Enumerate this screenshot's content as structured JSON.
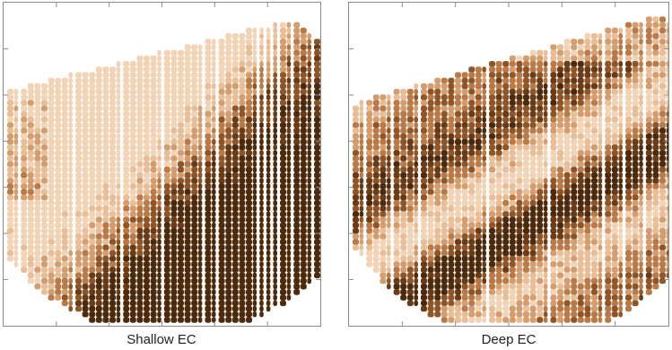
{
  "maps": [
    {
      "caption": "Shallow EC",
      "pattern": "broad diagonal band: light upper-left, dark band from lower-left to upper-right"
    },
    {
      "caption": "Deep EC",
      "pattern": "interleaved diagonal stripes of light and dark classes"
    }
  ],
  "palette": [
    "#f2d3b5",
    "#e9bd96",
    "#d59d6e",
    "#b97a47",
    "#8f5526",
    "#6a3b14",
    "#4e2a0c"
  ],
  "background": "#ffffff",
  "frame_color": "#8a8a8a"
}
